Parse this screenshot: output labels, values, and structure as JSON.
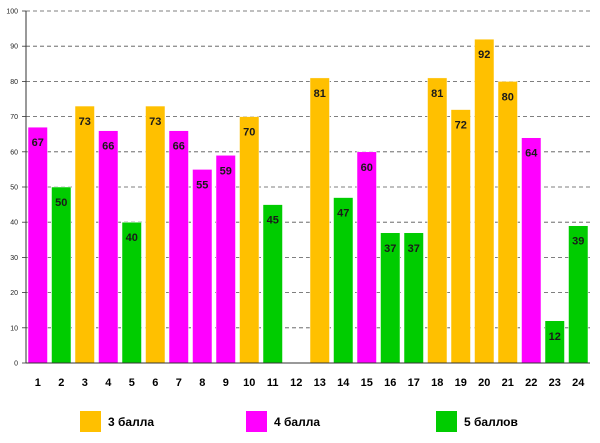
{
  "chart_data": {
    "type": "bar",
    "title": "",
    "xlabel": "",
    "ylabel": "",
    "ylim": [
      0,
      100
    ],
    "yticks": [
      0,
      10,
      20,
      30,
      40,
      50,
      60,
      70,
      80,
      90,
      100
    ],
    "grid": true,
    "categories": [
      "1",
      "2",
      "3",
      "4",
      "5",
      "6",
      "7",
      "8",
      "9",
      "10",
      "11",
      "12",
      "13",
      "14",
      "15",
      "16",
      "17",
      "18",
      "19",
      "20",
      "21",
      "22",
      "23",
      "24"
    ],
    "values": [
      67,
      50,
      73,
      66,
      40,
      73,
      66,
      55,
      59,
      70,
      45,
      null,
      81,
      47,
      60,
      37,
      37,
      81,
      72,
      92,
      80,
      64,
      12,
      39
    ],
    "groups": [
      "4 балла",
      "5 баллов",
      "3 балла",
      "4 балла",
      "5 баллов",
      "3 балла",
      "4 балла",
      "4 балла",
      "4 балла",
      "3 балла",
      "5 баллов",
      null,
      "3 балла",
      "5 баллов",
      "4 балла",
      "5 баллов",
      "5 баллов",
      "3 балла",
      "3 балла",
      "3 балла",
      "3 балла",
      "4 балла",
      "5 баллов",
      "5 баллов"
    ],
    "legend": [
      {
        "label": "3 балла",
        "color": "#FFC000"
      },
      {
        "label": "4 балла",
        "color": "#FF00FF"
      },
      {
        "label": "5 баллов",
        "color": "#00CC00"
      }
    ],
    "legend_position": "bottom"
  }
}
